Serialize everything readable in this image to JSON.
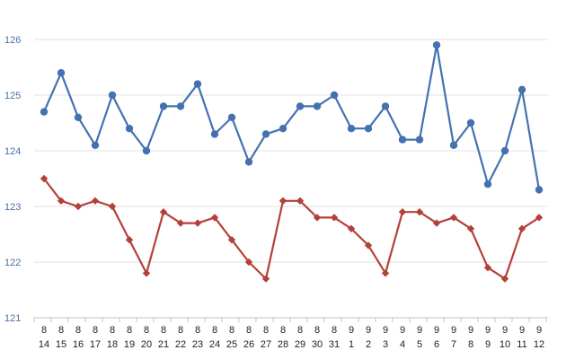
{
  "chart_data": {
    "type": "line",
    "categories": [
      [
        "8",
        "14"
      ],
      [
        "8",
        "15"
      ],
      [
        "8",
        "16"
      ],
      [
        "8",
        "17"
      ],
      [
        "8",
        "18"
      ],
      [
        "8",
        "19"
      ],
      [
        "8",
        "20"
      ],
      [
        "8",
        "21"
      ],
      [
        "8",
        "22"
      ],
      [
        "8",
        "23"
      ],
      [
        "8",
        "24"
      ],
      [
        "8",
        "25"
      ],
      [
        "8",
        "26"
      ],
      [
        "8",
        "27"
      ],
      [
        "8",
        "28"
      ],
      [
        "8",
        "29"
      ],
      [
        "8",
        "30"
      ],
      [
        "8",
        "31"
      ],
      [
        "9",
        "1"
      ],
      [
        "9",
        "2"
      ],
      [
        "9",
        "3"
      ],
      [
        "9",
        "4"
      ],
      [
        "9",
        "5"
      ],
      [
        "9",
        "6"
      ],
      [
        "9",
        "7"
      ],
      [
        "9",
        "8"
      ],
      [
        "9",
        "9"
      ],
      [
        "9",
        "10"
      ],
      [
        "9",
        "11"
      ],
      [
        "9",
        "12"
      ]
    ],
    "ylim": [
      121,
      126
    ],
    "yticks": [
      121,
      122,
      123,
      124,
      125,
      126
    ],
    "grid": true,
    "legend": "none",
    "series": [
      {
        "color": "#4472b0",
        "marker": "circle",
        "values": [
          124.7,
          125.4,
          124.6,
          124.1,
          125.0,
          124.4,
          124.0,
          124.8,
          124.8,
          125.2,
          124.3,
          124.6,
          123.8,
          124.3,
          124.4,
          124.8,
          124.8,
          125.0,
          124.4,
          124.4,
          124.8,
          124.2,
          124.2,
          125.9,
          124.1,
          124.5,
          123.4,
          124.0,
          125.1,
          123.3
        ]
      },
      {
        "color": "#b5403a",
        "marker": "diamond",
        "values": [
          123.5,
          123.1,
          123.0,
          123.1,
          123.0,
          122.4,
          121.8,
          122.9,
          122.7,
          122.7,
          122.8,
          122.4,
          122.0,
          121.7,
          123.1,
          123.1,
          122.8,
          122.8,
          122.6,
          122.3,
          121.8,
          122.9,
          122.9,
          122.7,
          122.8,
          122.6,
          121.9,
          121.7,
          122.6,
          122.8
        ]
      }
    ]
  }
}
